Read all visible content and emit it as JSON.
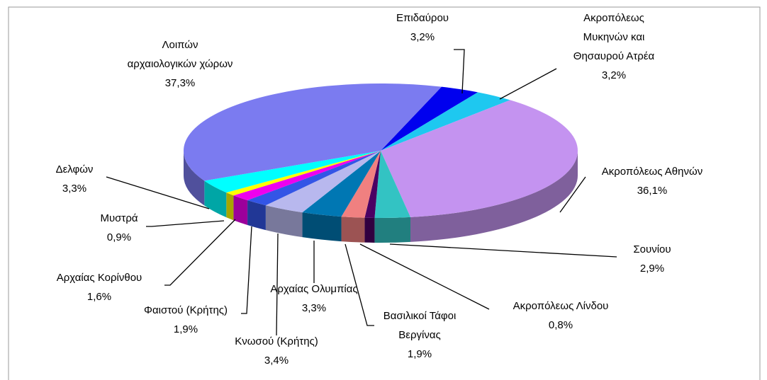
{
  "chart_data": {
    "type": "pie3d",
    "categories": [
      "Επιδαύρου",
      "Ακροπόλεως\nΜυκηνών και\nΘησαυρού Ατρέα",
      "Ακροπόλεως Αθηνών",
      "Σουνίου",
      "Ακροπόλεως Λίνδου",
      "Βασιλικοί Τάφοι\nΒεργίνας",
      "Αρχαίας Ολυμπίας",
      "Κνωσού (Κρήτης)",
      "Φαιστού (Κρήτης)",
      "Αρχαίας Κορίνθου",
      "Μυστρά",
      "Δελφών",
      "Λοιπών\nαρχαιολογικών χώρων"
    ],
    "values": [
      3.2,
      3.2,
      36.1,
      2.9,
      0.8,
      1.9,
      3.3,
      3.4,
      1.9,
      1.6,
      0.9,
      3.3,
      37.3
    ],
    "value_labels": [
      "3,2%",
      "3,2%",
      "36,1%",
      "2,9%",
      "0,8%",
      "1,9%",
      "3,3%",
      "3,4%",
      "1,9%",
      "1,6%",
      "0,9%",
      "3,3%",
      "37,3%"
    ],
    "colors": [
      "#0000ee",
      "#1ec8f0",
      "#c493f0",
      "#33c3c3",
      "#4b0063",
      "#f08080",
      "#0077b3",
      "#b8b8ee",
      "#3355e6",
      "#ee00ee",
      "#ffff00",
      "#00ffff",
      "#7b7bf0"
    ]
  }
}
